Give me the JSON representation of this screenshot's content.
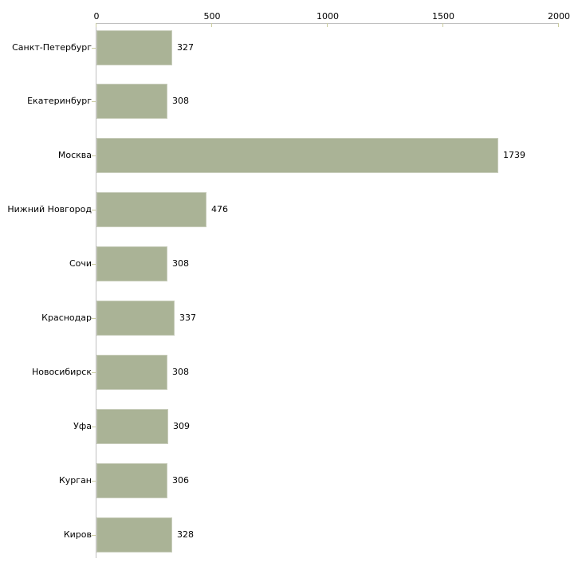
{
  "chart_data": {
    "type": "bar",
    "orientation": "horizontal",
    "title": "",
    "xlabel": "",
    "ylabel": "",
    "grid": false,
    "legend": "none",
    "axis_position": "top",
    "categories": [
      "Санкт-Петербург",
      "Екатеринбург",
      "Москва",
      "Нижний Новгород",
      "Сочи",
      "Краснодар",
      "Новосибирск",
      "Уфа",
      "Курган",
      "Киров"
    ],
    "values": [
      327,
      308,
      1739,
      476,
      308,
      337,
      308,
      309,
      306,
      328
    ],
    "xlim": [
      0,
      2000
    ],
    "x_ticks": [
      0,
      500,
      1000,
      1500,
      2000
    ],
    "colors": {
      "background": "#ffffff",
      "bar_fill": "#aab396",
      "bar_border": "#c8cdbb",
      "axis_line": "#c0c0c0",
      "tick_mark": "#cbcda0",
      "text": "#000000"
    }
  }
}
